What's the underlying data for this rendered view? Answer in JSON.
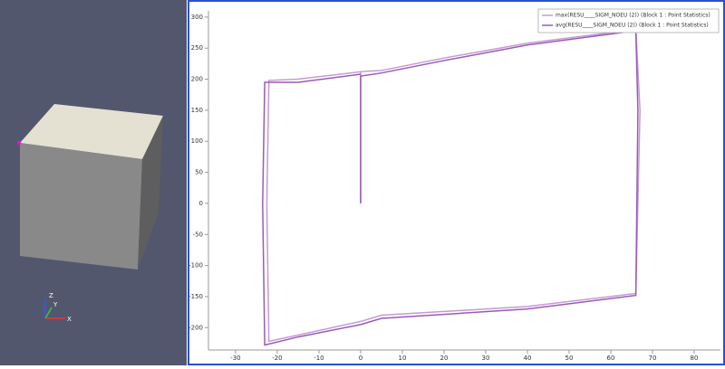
{
  "view3d": {
    "axes": [
      "X",
      "Y",
      "Z"
    ]
  },
  "chart_data": {
    "type": "line",
    "legend": "upper right",
    "series": [
      {
        "name": "max(RESU____SIGM_NOEU (2)) (Block 1 : Point Statistics)",
        "color": "#c39bd3",
        "x": [
          0,
          0,
          0,
          5,
          20,
          40,
          66,
          67,
          66,
          40,
          5,
          0,
          -15,
          -22,
          -22.5,
          -22,
          -15,
          0
        ],
        "values": [
          0,
          200,
          212,
          214,
          234,
          258,
          280,
          150,
          -145,
          -166,
          -180,
          -190,
          -212,
          -222,
          0,
          198,
          200,
          212
        ]
      },
      {
        "name": "avg(RESU____SIGM_NOEU (2)) (Block 1 : Point Statistics)",
        "color": "#9b59b6",
        "x": [
          0,
          0,
          5,
          20,
          40,
          66,
          66.5,
          66,
          40,
          5,
          0,
          -15,
          -23,
          -23.5,
          -23,
          -15,
          0
        ],
        "values": [
          0,
          205,
          210,
          230,
          255,
          278,
          150,
          -148,
          -170,
          -185,
          -195,
          -215,
          -228,
          0,
          195,
          195,
          208
        ]
      }
    ],
    "xlim": [
      -36.5,
      86.3
    ],
    "xticks": [
      -30,
      -20,
      -10,
      0,
      10,
      20,
      30,
      40,
      50,
      60,
      70,
      80
    ],
    "ylim": [
      -236,
      310
    ],
    "yticks": [
      300,
      250,
      200,
      150,
      100,
      50,
      0,
      -50,
      -100,
      -150,
      -200
    ]
  }
}
